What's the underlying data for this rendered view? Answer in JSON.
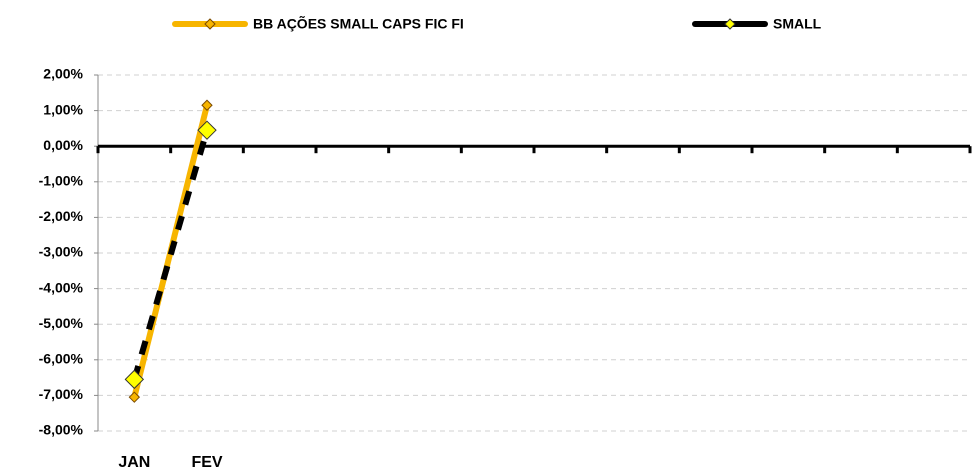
{
  "chart_data": {
    "type": "line",
    "categories": [
      "JAN",
      "FEV",
      null,
      null,
      null,
      null,
      null,
      null,
      null,
      null,
      null,
      null
    ],
    "series": [
      {
        "name": "BB AÇÕES SMALL CAPS FIC FI",
        "color": "#f7b500",
        "values": [
          -7.05,
          1.15,
          null,
          null,
          null,
          null,
          null,
          null,
          null,
          null,
          null,
          null
        ]
      },
      {
        "name": "SMALL",
        "color": "#000000",
        "values": [
          -6.55,
          0.45,
          null,
          null,
          null,
          null,
          null,
          null,
          null,
          null,
          null,
          null
        ]
      }
    ],
    "ylim": [
      -8,
      2
    ],
    "yticks": [
      {
        "value": -8,
        "label": "-8,00%"
      },
      {
        "value": -7,
        "label": "-7,00%"
      },
      {
        "value": -6,
        "label": "-6,00%"
      },
      {
        "value": -5,
        "label": "-5,00%"
      },
      {
        "value": -4,
        "label": "-4,00%"
      },
      {
        "value": -3,
        "label": "-3,00%"
      },
      {
        "value": -2,
        "label": "-2,00%"
      },
      {
        "value": -1,
        "label": "-1,00%"
      },
      {
        "value": 0,
        "label": "0,00%"
      },
      {
        "value": 1,
        "label": "1,00%"
      },
      {
        "value": 2,
        "label": "2,00%"
      }
    ],
    "grid": true,
    "legend": "top"
  }
}
